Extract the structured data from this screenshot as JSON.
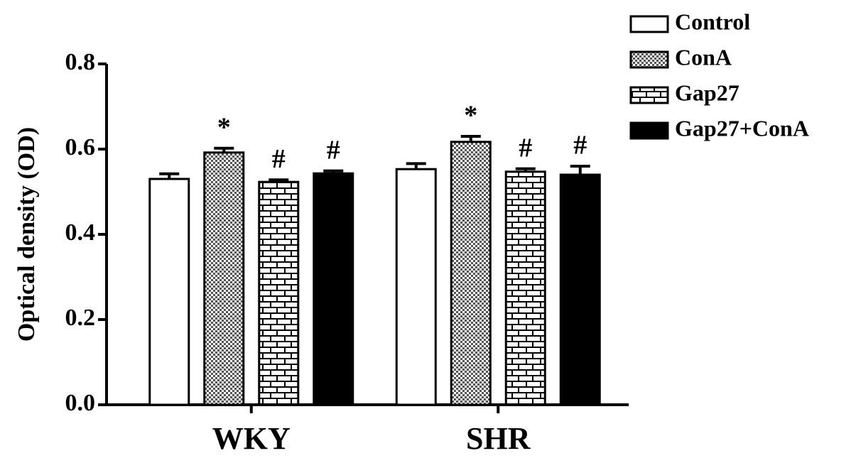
{
  "chart_data": {
    "type": "bar",
    "ylabel": "Optical density (OD)",
    "categories": [
      "WKY",
      "SHR"
    ],
    "series": [
      {
        "name": "Control",
        "color": "#ffffff",
        "pattern": "none",
        "values": [
          0.53,
          0.553
        ],
        "errors": [
          0.012,
          0.013
        ]
      },
      {
        "name": "ConA",
        "color": "#ffffff",
        "pattern": "checker",
        "values": [
          0.592,
          0.617
        ],
        "errors": [
          0.01,
          0.013
        ],
        "annotations": [
          "*",
          "*"
        ]
      },
      {
        "name": "Gap27",
        "color": "#ffffff",
        "pattern": "brick",
        "values": [
          0.523,
          0.547
        ],
        "errors": [
          0.005,
          0.007
        ],
        "annotations": [
          "#",
          "#"
        ]
      },
      {
        "name": "Gap27+ConA",
        "color": "#000000",
        "pattern": "none",
        "values": [
          0.543,
          0.54
        ],
        "errors": [
          0.006,
          0.02
        ],
        "annotations": [
          "#",
          "#"
        ]
      }
    ],
    "ylim": [
      0,
      0.8
    ],
    "yticks": [
      {
        "value": 0,
        "label": "0.0"
      },
      {
        "value": 0.2,
        "label": "0.2"
      },
      {
        "value": 0.4,
        "label": "0.4"
      },
      {
        "value": 0.6,
        "label": "0.6"
      },
      {
        "value": 0.8,
        "label": "0.8"
      }
    ],
    "legend": "top-right"
  }
}
